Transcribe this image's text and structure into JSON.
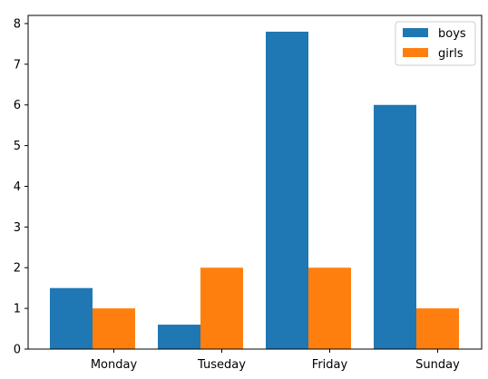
{
  "chart_data": {
    "type": "bar",
    "title": "",
    "xlabel": "",
    "ylabel": "",
    "categories": [
      "Monday",
      "Tuseday",
      "Friday",
      "Sunday"
    ],
    "series": [
      {
        "name": "boys",
        "values": [
          1.5,
          0.6,
          7.8,
          6.0
        ],
        "color": "#1f77b4"
      },
      {
        "name": "girls",
        "values": [
          1.0,
          2.0,
          2.0,
          1.0
        ],
        "color": "#ff7f0e"
      }
    ],
    "ylim": [
      0,
      8.2
    ],
    "yticks": [
      0,
      1,
      2,
      3,
      4,
      5,
      6,
      7,
      8
    ],
    "grid": false,
    "legend_position": "top-right"
  }
}
